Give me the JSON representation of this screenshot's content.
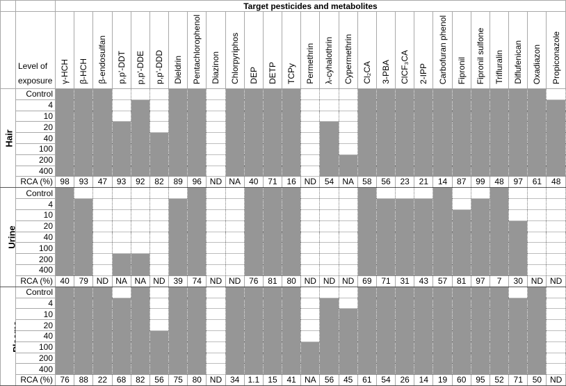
{
  "title": "Target pesticides and metabolites",
  "level_header": "Level of exposure",
  "rca_label": "RCA (%)",
  "colors": {
    "detected": "#969696",
    "not_detected": "#ffffff"
  },
  "levels": [
    "Control",
    "4",
    "10",
    "20",
    "40",
    "100",
    "200",
    "400"
  ],
  "pesticides": [
    "γ-HCH",
    "β-HCH",
    "β-endosulfan",
    "p,p'-DDT",
    "p,p'-DDE",
    "p,p'-DDD",
    "Dieldrin",
    "Pentachlorophenol",
    "Diazinon",
    "Chlorpyriphos",
    "DEP",
    "DETP",
    "TCPy",
    "Permethrin",
    "λ-cyhalothrin",
    "Cypermethrin",
    "Cl₂CA",
    "3-PBA",
    "ClCF₃CA",
    "2-IPP",
    "Carbofuran phenol",
    "Fipronil",
    "Fipronil sulfone",
    "Trifluralin",
    "Diflufenican",
    "Oxadiazon",
    "Propiconazole"
  ],
  "sections": [
    {
      "name": "Hair",
      "detected_from_level": [
        "Control",
        "Control",
        "Control",
        "20",
        "4",
        "40",
        "Control",
        "Control",
        null,
        "Control",
        "Control",
        "Control",
        "Control",
        null,
        "20",
        "200",
        "Control",
        "Control",
        "Control",
        "Control",
        "Control",
        "Control",
        "Control",
        "Control",
        "Control",
        "Control",
        "4"
      ],
      "rca": [
        "98",
        "93",
        "47",
        "93",
        "92",
        "82",
        "89",
        "96",
        "ND",
        "NA",
        "40",
        "71",
        "16",
        "ND",
        "54",
        "NA",
        "58",
        "56",
        "23",
        "21",
        "14",
        "87",
        "99",
        "48",
        "97",
        "61",
        "48"
      ]
    },
    {
      "name": "Urine",
      "detected_from_level": [
        "Control",
        "4",
        null,
        "200",
        "200",
        null,
        "4",
        "Control",
        null,
        null,
        "Control",
        "Control",
        "Control",
        null,
        null,
        null,
        "Control",
        "4",
        "4",
        "4",
        "Control",
        "10",
        "4",
        "Control",
        "20",
        null,
        null
      ],
      "rca": [
        "40",
        "79",
        "ND",
        "NA",
        "NA",
        "ND",
        "39",
        "74",
        "ND",
        "ND",
        "76",
        "81",
        "80",
        "ND",
        "ND",
        "ND",
        "69",
        "71",
        "31",
        "43",
        "57",
        "81",
        "97",
        "7",
        "30",
        "ND",
        "ND"
      ]
    },
    {
      "name": "Plasma",
      "detected_from_level": [
        "Control",
        "Control",
        "Control",
        "4",
        "Control",
        "40",
        "Control",
        "Control",
        null,
        "Control",
        "Control",
        "Control",
        "Control",
        "100",
        "4",
        "10",
        "Control",
        "Control",
        "Control",
        "Control",
        "Control",
        "Control",
        "Control",
        "Control",
        "4",
        "Control",
        null
      ],
      "rca": [
        "76",
        "88",
        "22",
        "68",
        "82",
        "56",
        "75",
        "80",
        "ND",
        "34",
        "1.1",
        "15",
        "41",
        "NA",
        "56",
        "45",
        "61",
        "54",
        "26",
        "14",
        "19",
        "60",
        "95",
        "52",
        "71",
        "50",
        "ND"
      ]
    }
  ]
}
